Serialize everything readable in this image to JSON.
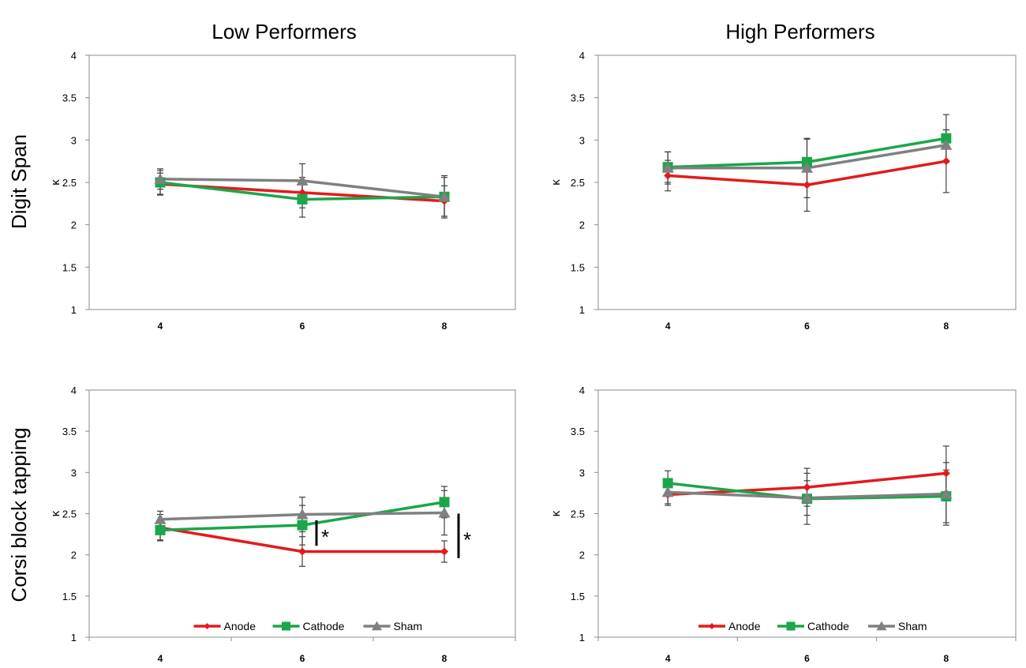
{
  "figure": {
    "column_titles": [
      "Low Performers",
      "High Performers"
    ],
    "row_labels": [
      "Digit Span",
      "Corsi block tapping"
    ]
  },
  "series_colors": {
    "Anode": "#e31a1c",
    "Cathode": "#1aa64a",
    "Sham": "#808080"
  },
  "series_markers": {
    "Anode": "diamond",
    "Cathode": "square",
    "Sham": "triangle"
  },
  "chart_data": [
    {
      "id": "digit-span-low",
      "type": "line",
      "title": "",
      "xlabel": "",
      "ylabel": "κ",
      "x": [
        4,
        6,
        8
      ],
      "ylim": [
        1,
        4
      ],
      "yticks": [
        "1",
        "1.5",
        "2",
        "2.5",
        "3",
        "3.5",
        "4"
      ],
      "legend": false,
      "series": [
        {
          "name": "Anode",
          "values": [
            2.48,
            2.38,
            2.28
          ],
          "errors": [
            0.13,
            0.18,
            0.18
          ]
        },
        {
          "name": "Cathode",
          "values": [
            2.5,
            2.3,
            2.33
          ],
          "errors": [
            0.14,
            0.21,
            0.23
          ]
        },
        {
          "name": "Sham",
          "values": [
            2.54,
            2.52,
            2.33
          ],
          "errors": [
            0.12,
            0.2,
            0.25
          ]
        }
      ],
      "annotations": []
    },
    {
      "id": "digit-span-high",
      "type": "line",
      "title": "",
      "xlabel": "",
      "ylabel": "κ",
      "x": [
        4,
        6,
        8
      ],
      "ylim": [
        1,
        4
      ],
      "yticks": [
        "1",
        "1.5",
        "2",
        "2.5",
        "3",
        "3.5",
        "4"
      ],
      "legend": false,
      "series": [
        {
          "name": "Anode",
          "values": [
            2.58,
            2.47,
            2.75
          ],
          "errors": [
            0.18,
            0.31,
            0.37
          ]
        },
        {
          "name": "Cathode",
          "values": [
            2.68,
            2.74,
            3.02
          ],
          "errors": [
            0.18,
            0.27,
            0.28
          ]
        },
        {
          "name": "Sham",
          "values": [
            2.67,
            2.67,
            2.94
          ],
          "errors": [
            0.19,
            0.35,
            0.18
          ]
        }
      ],
      "annotations": []
    },
    {
      "id": "corsi-low",
      "type": "line",
      "title": "",
      "xlabel": "",
      "ylabel": "κ",
      "x": [
        4,
        6,
        8
      ],
      "ylim": [
        1,
        4
      ],
      "yticks": [
        "1",
        "1.5",
        "2",
        "2.5",
        "3",
        "3.5",
        "4"
      ],
      "legend": true,
      "series": [
        {
          "name": "Anode",
          "values": [
            2.33,
            2.04,
            2.04
          ],
          "errors": [
            0.16,
            0.18,
            0.13
          ]
        },
        {
          "name": "Cathode",
          "values": [
            2.3,
            2.36,
            2.64
          ],
          "errors": [
            0.12,
            0.24,
            0.19
          ]
        },
        {
          "name": "Sham",
          "values": [
            2.43,
            2.49,
            2.51
          ],
          "errors": [
            0.1,
            0.21,
            0.27
          ]
        }
      ],
      "annotations": [
        {
          "text": "*",
          "x": 6,
          "y_from": 2.11,
          "y_to": 2.42
        },
        {
          "text": "*",
          "x": 8,
          "y_from": 1.96,
          "y_to": 2.5
        }
      ]
    },
    {
      "id": "corsi-high",
      "type": "line",
      "title": "",
      "xlabel": "",
      "ylabel": "κ",
      "x": [
        4,
        6,
        8
      ],
      "ylim": [
        1,
        4
      ],
      "yticks": [
        "1",
        "1.5",
        "2",
        "2.5",
        "3",
        "3.5",
        "4"
      ],
      "legend": true,
      "series": [
        {
          "name": "Anode",
          "values": [
            2.73,
            2.82,
            2.99
          ],
          "errors": [
            0.13,
            0.23,
            0.33
          ]
        },
        {
          "name": "Cathode",
          "values": [
            2.87,
            2.68,
            2.71
          ],
          "errors": [
            0.15,
            0.31,
            0.32
          ]
        },
        {
          "name": "Sham",
          "values": [
            2.76,
            2.69,
            2.74
          ],
          "errors": [
            0.14,
            0.21,
            0.38
          ]
        }
      ],
      "annotations": []
    }
  ]
}
